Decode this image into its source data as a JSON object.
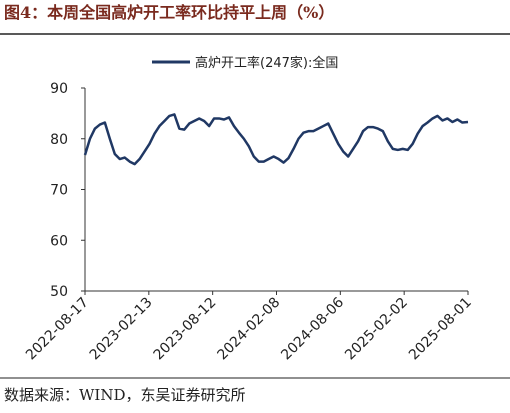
{
  "source": "数据来源：WIND，东吴证券研究所",
  "chart_data": {
    "type": "line",
    "title": "图4：本周全国高炉开工率环比持平上周（%）",
    "x": [
      "2022-08-17",
      "2022-08-31",
      "2022-09-14",
      "2022-09-28",
      "2022-10-12",
      "2022-10-26",
      "2022-11-09",
      "2022-11-23",
      "2022-12-07",
      "2022-12-21",
      "2023-01-04",
      "2023-01-18",
      "2023-02-01",
      "2023-02-15",
      "2023-03-01",
      "2023-03-15",
      "2023-03-29",
      "2023-04-12",
      "2023-04-26",
      "2023-05-10",
      "2023-05-24",
      "2023-06-07",
      "2023-06-21",
      "2023-07-05",
      "2023-07-19",
      "2023-08-02",
      "2023-08-16",
      "2023-08-30",
      "2023-09-13",
      "2023-09-27",
      "2023-10-11",
      "2023-10-25",
      "2023-11-08",
      "2023-11-22",
      "2023-12-06",
      "2023-12-20",
      "2024-01-03",
      "2024-01-17",
      "2024-01-31",
      "2024-02-14",
      "2024-02-28",
      "2024-03-13",
      "2024-03-27",
      "2024-04-10",
      "2024-04-24",
      "2024-05-08",
      "2024-05-22",
      "2024-06-05",
      "2024-06-19",
      "2024-07-03",
      "2024-07-17",
      "2024-07-31",
      "2024-08-14",
      "2024-08-28",
      "2024-09-11",
      "2024-09-25",
      "2024-10-09",
      "2024-10-23",
      "2024-11-06",
      "2024-11-20",
      "2024-12-04",
      "2024-12-18",
      "2025-01-01",
      "2025-01-15",
      "2025-01-29",
      "2025-02-12",
      "2025-02-26",
      "2025-03-12",
      "2025-03-26",
      "2025-04-09",
      "2025-04-23",
      "2025-05-07",
      "2025-05-21",
      "2025-06-04",
      "2025-06-18",
      "2025-07-02",
      "2025-07-16",
      "2025-08-01"
    ],
    "series": [
      {
        "name": "高炉开工率(247家):全国",
        "color": "#203864",
        "values": [
          76.8,
          80,
          82,
          82.8,
          83.2,
          80,
          77,
          76,
          76.3,
          75.5,
          75,
          76,
          77.5,
          79,
          81,
          82.5,
          83.5,
          84.5,
          84.8,
          82,
          81.8,
          83,
          83.5,
          84,
          83.5,
          82.5,
          84,
          84,
          83.8,
          84.2,
          82.5,
          81.2,
          80,
          78.5,
          76.5,
          75.5,
          75.5,
          76,
          76.5,
          76,
          75.3,
          76.2,
          78,
          80,
          81.2,
          81.5,
          81.5,
          82,
          82.5,
          83,
          81,
          79,
          77.5,
          76.5,
          78,
          79.5,
          81.5,
          82.3,
          82.3,
          82,
          81.5,
          79.5,
          78,
          77.8,
          78,
          77.8,
          79,
          81,
          82.5,
          83.2,
          84,
          84.5,
          83.6,
          84,
          83.3,
          83.8,
          83.2,
          83.3
        ]
      }
    ],
    "xlim": [
      "2022-08-17",
      "2025-08-01"
    ],
    "xticks": [
      "2022-08-17",
      "2023-02-13",
      "2023-08-12",
      "2024-02-08",
      "2024-08-06",
      "2025-02-02",
      "2025-08-01"
    ],
    "ylim": [
      50,
      90
    ],
    "yticks": [
      50,
      60,
      70,
      80,
      90
    ]
  }
}
